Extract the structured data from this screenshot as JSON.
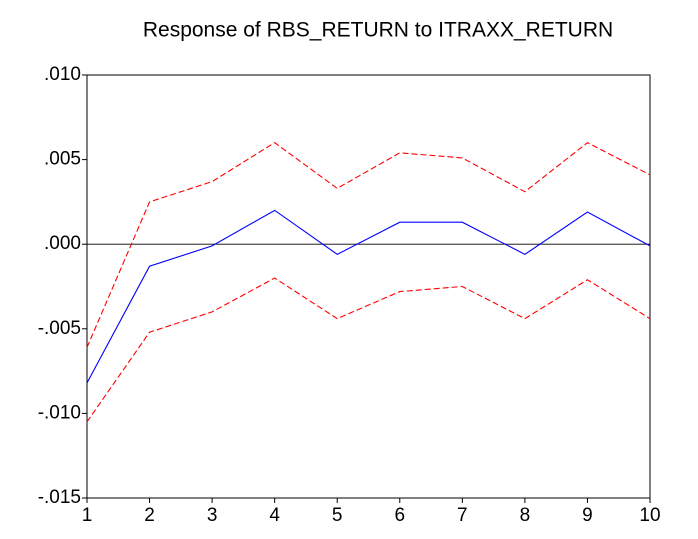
{
  "chart_data": {
    "type": "line",
    "title": "Response of RBS_RETURN to ITRAXX_RETURN",
    "x": [
      1,
      2,
      3,
      4,
      5,
      6,
      7,
      8,
      9,
      10
    ],
    "series": [
      {
        "color": "#ff0000",
        "dash": true,
        "values": [
          -0.0061,
          0.0025,
          0.0037,
          0.006,
          0.0033,
          0.0054,
          0.0051,
          0.0031,
          0.006,
          0.0041
        ]
      },
      {
        "color": "#0000ff",
        "dash": false,
        "values": [
          -0.0082,
          -0.0013,
          -0.0001,
          0.002,
          -0.0006,
          0.0013,
          0.0013,
          -0.0006,
          0.0019,
          -0.0001
        ]
      },
      {
        "color": "#ff0000",
        "dash": true,
        "values": [
          -0.0105,
          -0.0052,
          -0.004,
          -0.002,
          -0.0044,
          -0.0028,
          -0.0025,
          -0.0044,
          -0.0021,
          -0.0044
        ]
      }
    ],
    "xlim": [
      1,
      10
    ],
    "xticks": [
      1,
      2,
      3,
      4,
      5,
      6,
      7,
      8,
      9,
      10
    ],
    "ylim": [
      -0.015,
      0.01
    ],
    "yticks": [
      {
        "value": -0.015,
        "label": "-.015"
      },
      {
        "value": -0.01,
        "label": "-.010"
      },
      {
        "value": -0.005,
        "label": "-.005"
      },
      {
        "value": 0,
        "label": ".000"
      },
      {
        "value": 0.005,
        "label": ".005"
      },
      {
        "value": 0.01,
        "label": ".010"
      }
    ],
    "zero_line": true,
    "grid": false
  }
}
